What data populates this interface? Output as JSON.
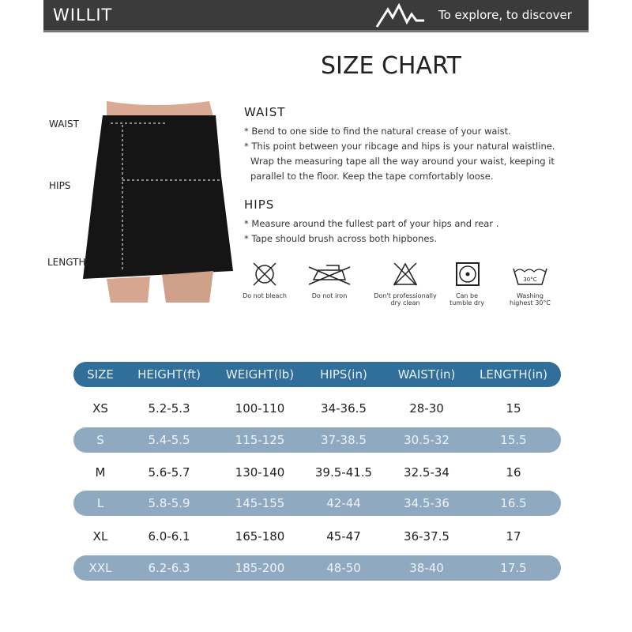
{
  "header": {
    "brand": "WILLIT",
    "slogan": "To explore, to discover",
    "logo_icon": "mountain-icon"
  },
  "title": "SIZE CHART",
  "measure_labels": {
    "waist": "WAIST",
    "hips": "HIPS",
    "length": "LENGTH"
  },
  "waist": {
    "heading": "WAIST",
    "bullets": [
      "* Bend to one side to find the natural crease of your waist.",
      "* This point between your ribcage and hips is your natural waistline.",
      "Wrap the measuring tape all the way around your waist, keeping it",
      "parallel to the floor. Keep the tape comfortably loose."
    ]
  },
  "hips": {
    "heading": "HIPS",
    "bullets": [
      "* Measure around the fullest part of your hips and rear .",
      "* Tape should brush across both hipbones."
    ]
  },
  "care": [
    {
      "icon": "no-bleach-icon",
      "label1": "Do not bleach",
      "label2": ""
    },
    {
      "icon": "no-iron-icon",
      "label1": "Do not iron",
      "label2": ""
    },
    {
      "icon": "no-dry-clean-icon",
      "label1": "Don't professionally",
      "label2": "dry clean"
    },
    {
      "icon": "tumble-dry-icon",
      "label1": "Can be",
      "label2": "tumble dry"
    },
    {
      "icon": "wash-30-icon",
      "label1": "Washing",
      "label2": "highest 30°C",
      "temp": "30°C"
    }
  ],
  "colors": {
    "header": "#2f6f9a",
    "stripe": "#8fa9c0",
    "topbar": "#3b3b3b"
  },
  "table": {
    "columns": [
      "SIZE",
      "HEIGHT(ft)",
      "WEIGHT(lb)",
      "HIPS(in)",
      "WAIST(in)",
      "LENGTH(in)"
    ],
    "rows": [
      [
        "XS",
        "5.2-5.3",
        "100-110",
        "34-36.5",
        "28-30",
        "15"
      ],
      [
        "S",
        "5.4-5.5",
        "115-125",
        "37-38.5",
        "30.5-32",
        "15.5"
      ],
      [
        "M",
        "5.6-5.7",
        "130-140",
        "39.5-41.5",
        "32.5-34",
        "16"
      ],
      [
        "L",
        "5.8-5.9",
        "145-155",
        "42-44",
        "34.5-36",
        "16.5"
      ],
      [
        "XL",
        "6.0-6.1",
        "165-180",
        "45-47",
        "36-37.5",
        "17"
      ],
      [
        "XXL",
        "6.2-6.3",
        "185-200",
        "48-50",
        "38-40",
        "17.5"
      ]
    ]
  }
}
